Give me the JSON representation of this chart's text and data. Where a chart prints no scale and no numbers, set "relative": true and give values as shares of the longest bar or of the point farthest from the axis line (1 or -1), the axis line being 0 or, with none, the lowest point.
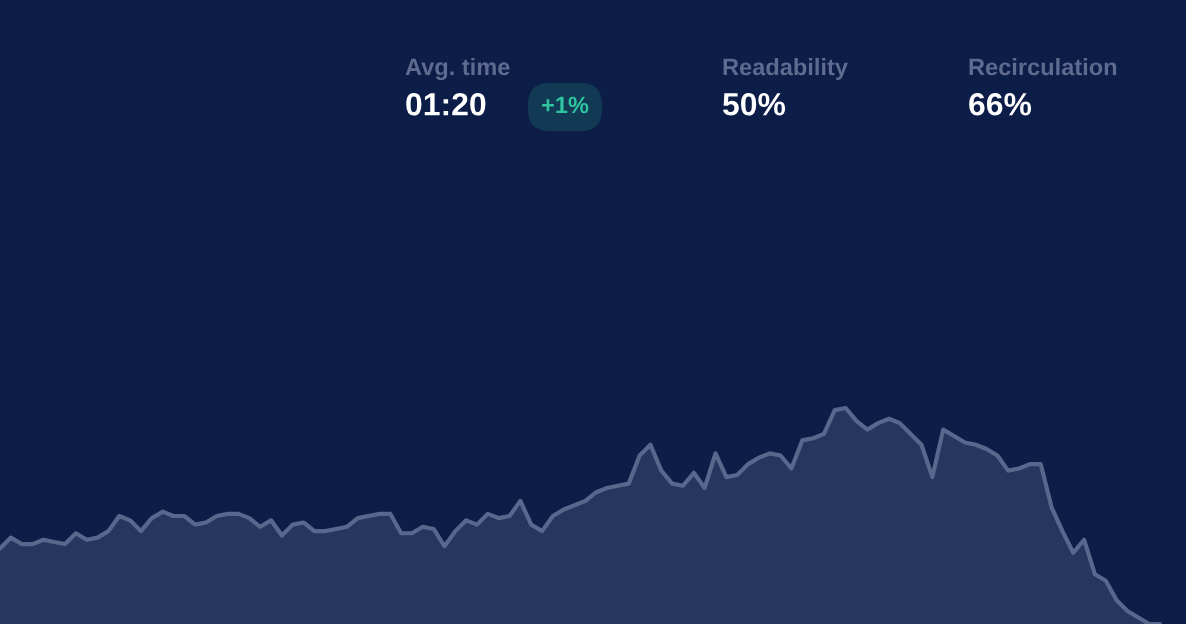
{
  "chart_data": {
    "type": "area",
    "relative": true,
    "categories": [
      null,
      null,
      null,
      null,
      null,
      null,
      null,
      null,
      null,
      null,
      null,
      null,
      null,
      null,
      null,
      null,
      null,
      null,
      null,
      null,
      null,
      null,
      null,
      null,
      null,
      null,
      null,
      null,
      null,
      null,
      null,
      null,
      null,
      null,
      null,
      null,
      null,
      null,
      null,
      null,
      null,
      null,
      null,
      null,
      null,
      null,
      null,
      null,
      null,
      null,
      null,
      null,
      null,
      null,
      null,
      null,
      null,
      null,
      null,
      null,
      null,
      null,
      null,
      null,
      null,
      null,
      null,
      null,
      null,
      null,
      null,
      null,
      null,
      null,
      null,
      null,
      null,
      null,
      null,
      null,
      null,
      null,
      null,
      null,
      null,
      null,
      null,
      null,
      null,
      null,
      null,
      null,
      null,
      null,
      null,
      null,
      null,
      null,
      null,
      null,
      null,
      null,
      null,
      null,
      null,
      null,
      null,
      null
    ],
    "series": [
      {
        "color": "#56688c",
        "values": [
          0.35,
          0.4,
          0.37,
          0.37,
          0.39,
          0.38,
          0.37,
          0.42,
          0.39,
          0.4,
          0.43,
          0.5,
          0.48,
          0.43,
          0.49,
          0.52,
          0.5,
          0.5,
          0.46,
          0.47,
          0.5,
          0.51,
          0.51,
          0.49,
          0.45,
          0.48,
          0.41,
          0.46,
          0.47,
          0.43,
          0.43,
          0.44,
          0.45,
          0.49,
          0.5,
          0.51,
          0.51,
          0.42,
          0.42,
          0.45,
          0.44,
          0.36,
          0.43,
          0.48,
          0.46,
          0.51,
          0.49,
          0.5,
          0.57,
          0.46,
          0.43,
          0.5,
          0.53,
          0.55,
          0.57,
          0.61,
          0.63,
          0.64,
          0.65,
          0.78,
          0.83,
          0.71,
          0.65,
          0.64,
          0.7,
          0.63,
          0.79,
          0.68,
          0.69,
          0.74,
          0.77,
          0.79,
          0.78,
          0.72,
          0.85,
          0.86,
          0.88,
          0.99,
          1,
          0.94,
          0.9,
          0.93,
          0.95,
          0.93,
          0.88,
          0.83,
          0.68,
          0.9,
          0.87,
          0.84,
          0.83,
          0.81,
          0.78,
          0.71,
          0.72,
          0.74,
          0.74,
          0.54,
          0.43,
          0.33,
          0.39,
          0.23,
          0.2,
          0.11,
          0.06,
          0.03,
          0,
          0
        ]
      }
    ],
    "annotations": [
      "Avg. time",
      "01:20",
      "+1%",
      "Readability",
      "50%",
      "Recirculation",
      "66%"
    ]
  }
}
